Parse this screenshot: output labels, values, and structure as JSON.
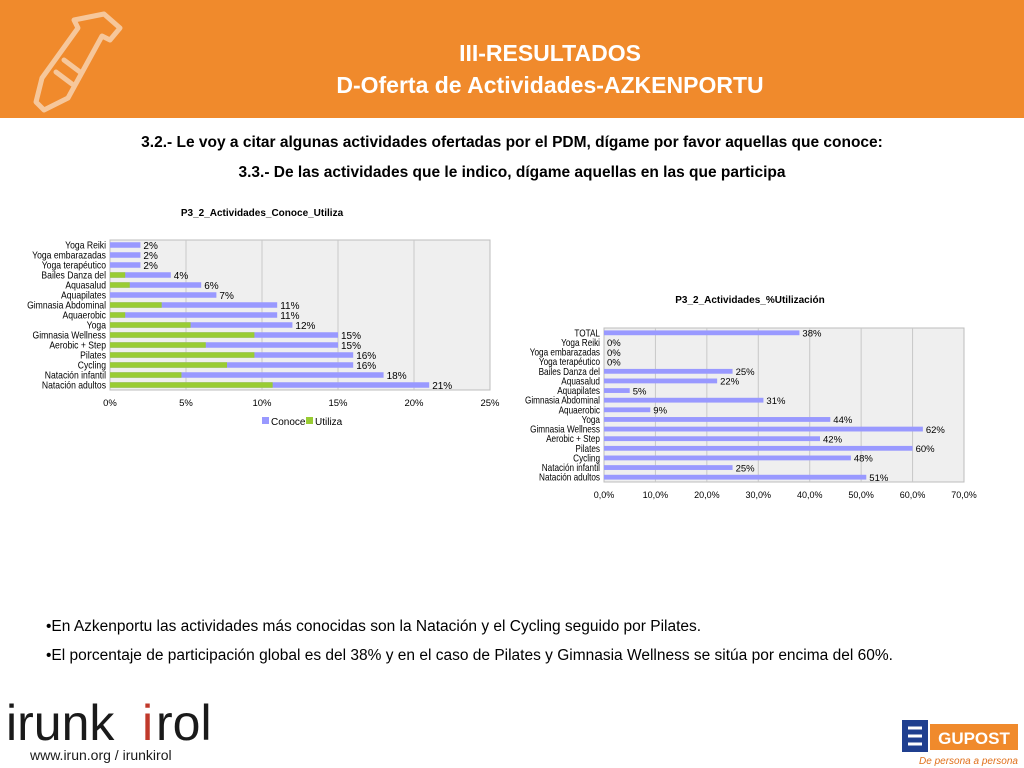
{
  "header": {
    "title_line1": "III-RESULTADOS",
    "title_line2": "D-Oferta de Actividades-AZKENPORTU",
    "bg_color": "#f08a2c",
    "icon": "bottle-icon"
  },
  "questions": {
    "q1": "3.2.- Le voy a citar algunas actividades ofertadas por el PDM, dígame por favor aquellas que conoce:",
    "q2": "3.3.- De las actividades que le indico, dígame aquellas en las que participa"
  },
  "chart_data": [
    {
      "type": "bar",
      "orientation": "horizontal",
      "title": "P3_2_Actividades_Conoce_Utiliza",
      "categories": [
        "Yoga Reiki",
        "Yoga embarazadas",
        "Yoga terapéutico",
        "Bailes Danza del",
        "Aquasalud",
        "Aquapilates",
        "Gimnasia Abdominal",
        "Aquaerobic",
        "Yoga",
        "Gimnasia Wellness",
        "Aerobic + Step",
        "Pilates",
        "Cycling",
        "Natación infantil",
        "Natación adultos"
      ],
      "series": [
        {
          "name": "Conoce",
          "color": "#9999ff",
          "values": [
            2,
            2,
            2,
            4,
            6,
            7,
            11,
            11,
            12,
            15,
            15,
            16,
            16,
            18,
            21
          ],
          "labels": [
            "2%",
            "2%",
            "2%",
            "4%",
            "6%",
            "7%",
            "11%",
            "11%",
            "12%",
            "15%",
            "15%",
            "16%",
            "16%",
            "18%",
            "21%"
          ]
        },
        {
          "name": "Utiliza",
          "color": "#99cc33",
          "values": [
            0,
            0,
            0,
            1,
            1.3,
            0,
            3.4,
            1,
            5.3,
            9.5,
            6.3,
            9.5,
            7.7,
            4.7,
            10.7
          ]
        }
      ],
      "xlim": [
        0,
        25
      ],
      "x_ticks": [
        "0%",
        "5%",
        "10%",
        "15%",
        "20%",
        "25%"
      ],
      "grid": true,
      "legend": "bottom"
    },
    {
      "type": "bar",
      "orientation": "horizontal",
      "title": "P3_2_Actividades_%Utilización",
      "categories": [
        "TOTAL",
        "Yoga Reiki",
        "Yoga embarazadas",
        "Yoga terapéutico",
        "Bailes Danza del",
        "Aquasalud",
        "Aquapilates",
        "Gimnasia Abdominal",
        "Aquaerobic",
        "Yoga",
        "Gimnasia Wellness",
        "Aerobic + Step",
        "Pilates",
        "Cycling",
        "Natación infantil",
        "Natación adultos"
      ],
      "series": [
        {
          "name": "",
          "color": "#9999ff",
          "values": [
            38,
            0,
            0,
            0,
            25,
            22,
            5,
            31,
            9,
            44,
            62,
            42,
            60,
            48,
            25,
            51
          ],
          "labels": [
            "38%",
            "0%",
            "0%",
            "0%",
            "25%",
            "22%",
            "5%",
            "31%",
            "9%",
            "44%",
            "62%",
            "42%",
            "60%",
            "48%",
            "25%",
            "51%"
          ]
        }
      ],
      "xlim": [
        0,
        70
      ],
      "x_ticks": [
        "0,0%",
        "10,0%",
        "20,0%",
        "30,0%",
        "40,0%",
        "50,0%",
        "60,0%",
        "70,0%"
      ],
      "grid": true
    }
  ],
  "bullets": [
    "•En Azkenportu las actividades más conocidas son la Natación y el Cycling seguido por Pilates.",
    "•El porcentaje de participación global es del 38% y en el caso de Pilates y Gimnasia Wellness se sitúa por encima del 60%."
  ],
  "footer": {
    "logo_left": "irunkirol",
    "url": "www.irun.org / irunkirol",
    "logo_right": "GUPOST",
    "logo_right_tagline": "De persona a persona"
  }
}
